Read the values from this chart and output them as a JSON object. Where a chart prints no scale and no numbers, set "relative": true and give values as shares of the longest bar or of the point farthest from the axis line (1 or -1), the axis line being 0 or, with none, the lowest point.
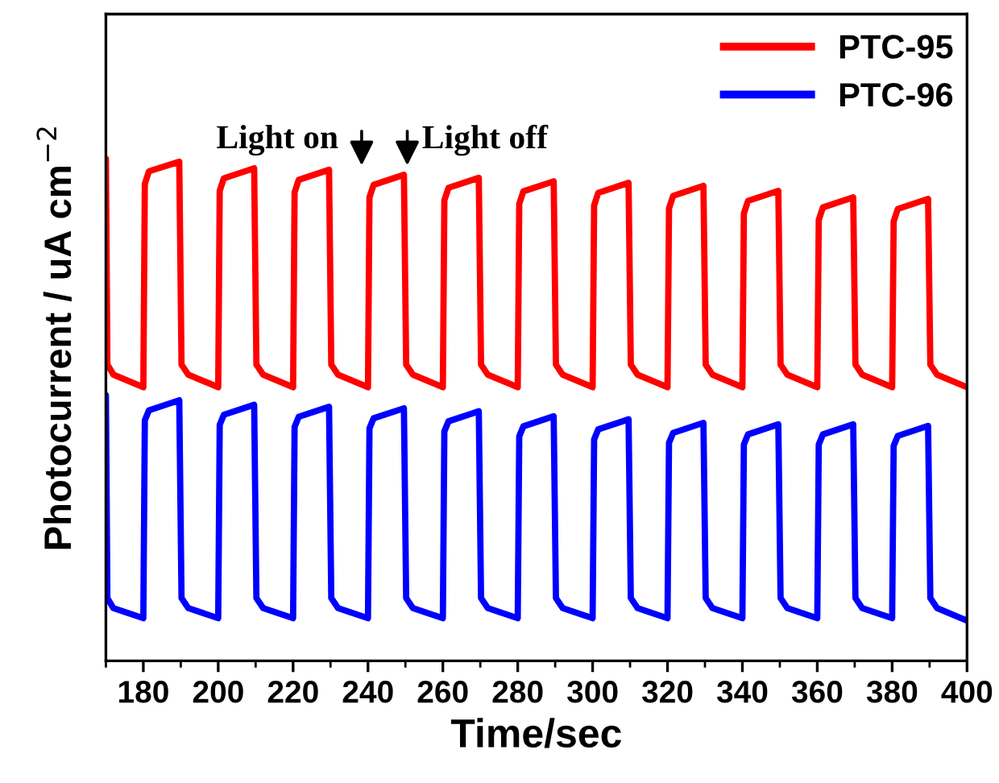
{
  "chart_data": {
    "type": "line",
    "relative": true,
    "xlabel": "Time/sec",
    "ylabel": "Photocurrent / uA cm$^{−2}$",
    "xlim": [
      170,
      400
    ],
    "xticks": [
      180,
      200,
      220,
      240,
      260,
      280,
      300,
      320,
      340,
      360,
      380,
      400
    ],
    "grid": false,
    "legend": "top right",
    "tick_labels": "x",
    "annotations": [
      "Light on",
      "Light off"
    ],
    "series": [
      {
        "name": "PTC-95",
        "color": "#ff0000",
        "x": [
          170,
          170.4,
          172,
          180,
          180.4,
          181.5,
          189.6,
          190.2,
          192,
          200,
          200.4,
          201.5,
          209.6,
          210.2,
          212,
          220,
          220.4,
          221.5,
          229.6,
          230.2,
          232,
          240,
          240.4,
          241.5,
          249.6,
          250.2,
          252,
          260,
          260.4,
          261.5,
          269.6,
          270.2,
          272,
          280,
          280.4,
          281.5,
          289.6,
          290.2,
          292,
          300,
          300.4,
          301.5,
          309.6,
          310.2,
          312,
          320,
          320.4,
          321.5,
          329.6,
          330.2,
          332,
          340,
          340.4,
          341.5,
          349.6,
          350.2,
          352,
          360,
          360.4,
          361.5,
          369.6,
          370.2,
          372,
          380,
          380.4,
          381.5,
          389.6,
          390.2,
          392,
          400
        ],
        "values": [
          1.0,
          0.59,
          0.57,
          0.545,
          0.95,
          0.975,
          0.994,
          0.59,
          0.57,
          0.545,
          0.936,
          0.961,
          0.981,
          0.59,
          0.57,
          0.545,
          0.933,
          0.958,
          0.978,
          0.59,
          0.57,
          0.545,
          0.923,
          0.948,
          0.968,
          0.59,
          0.57,
          0.545,
          0.917,
          0.942,
          0.962,
          0.59,
          0.57,
          0.545,
          0.91,
          0.935,
          0.955,
          0.59,
          0.57,
          0.545,
          0.907,
          0.932,
          0.952,
          0.59,
          0.57,
          0.545,
          0.901,
          0.926,
          0.946,
          0.59,
          0.57,
          0.545,
          0.891,
          0.916,
          0.936,
          0.59,
          0.57,
          0.545,
          0.878,
          0.903,
          0.923,
          0.59,
          0.57,
          0.545,
          0.875,
          0.9,
          0.92,
          0.59,
          0.57,
          0.545
        ]
      },
      {
        "name": "PTC-96",
        "color": "#0000ff",
        "x": [
          170,
          170.4,
          172,
          180,
          180.4,
          181.5,
          189.6,
          190.2,
          192,
          200,
          200.4,
          201.5,
          209.6,
          210.2,
          212,
          220,
          220.4,
          221.5,
          229.6,
          230.2,
          232,
          240,
          240.4,
          241.5,
          249.6,
          250.2,
          252,
          260,
          260.4,
          261.5,
          269.6,
          270.2,
          272,
          280,
          280.4,
          281.5,
          289.6,
          290.2,
          292,
          300,
          300.4,
          301.5,
          309.6,
          310.2,
          312,
          320,
          320.4,
          321.5,
          329.6,
          330.2,
          332,
          340,
          340.4,
          341.5,
          349.6,
          350.2,
          352,
          360,
          360.4,
          361.5,
          369.6,
          370.2,
          372,
          380,
          380.4,
          381.5,
          389.6,
          390.2,
          392,
          400
        ],
        "values": [
          0.529,
          0.125,
          0.105,
          0.085,
          0.479,
          0.499,
          0.519,
          0.125,
          0.105,
          0.085,
          0.47,
          0.49,
          0.51,
          0.125,
          0.105,
          0.085,
          0.466,
          0.486,
          0.506,
          0.125,
          0.105,
          0.085,
          0.463,
          0.483,
          0.503,
          0.125,
          0.105,
          0.085,
          0.457,
          0.477,
          0.497,
          0.125,
          0.105,
          0.085,
          0.447,
          0.467,
          0.487,
          0.125,
          0.105,
          0.085,
          0.441,
          0.461,
          0.481,
          0.125,
          0.105,
          0.085,
          0.434,
          0.454,
          0.474,
          0.125,
          0.105,
          0.085,
          0.431,
          0.451,
          0.471,
          0.125,
          0.105,
          0.085,
          0.431,
          0.451,
          0.471,
          0.125,
          0.105,
          0.085,
          0.428,
          0.448,
          0.468,
          0.125,
          0.105,
          0.08
        ]
      }
    ]
  }
}
